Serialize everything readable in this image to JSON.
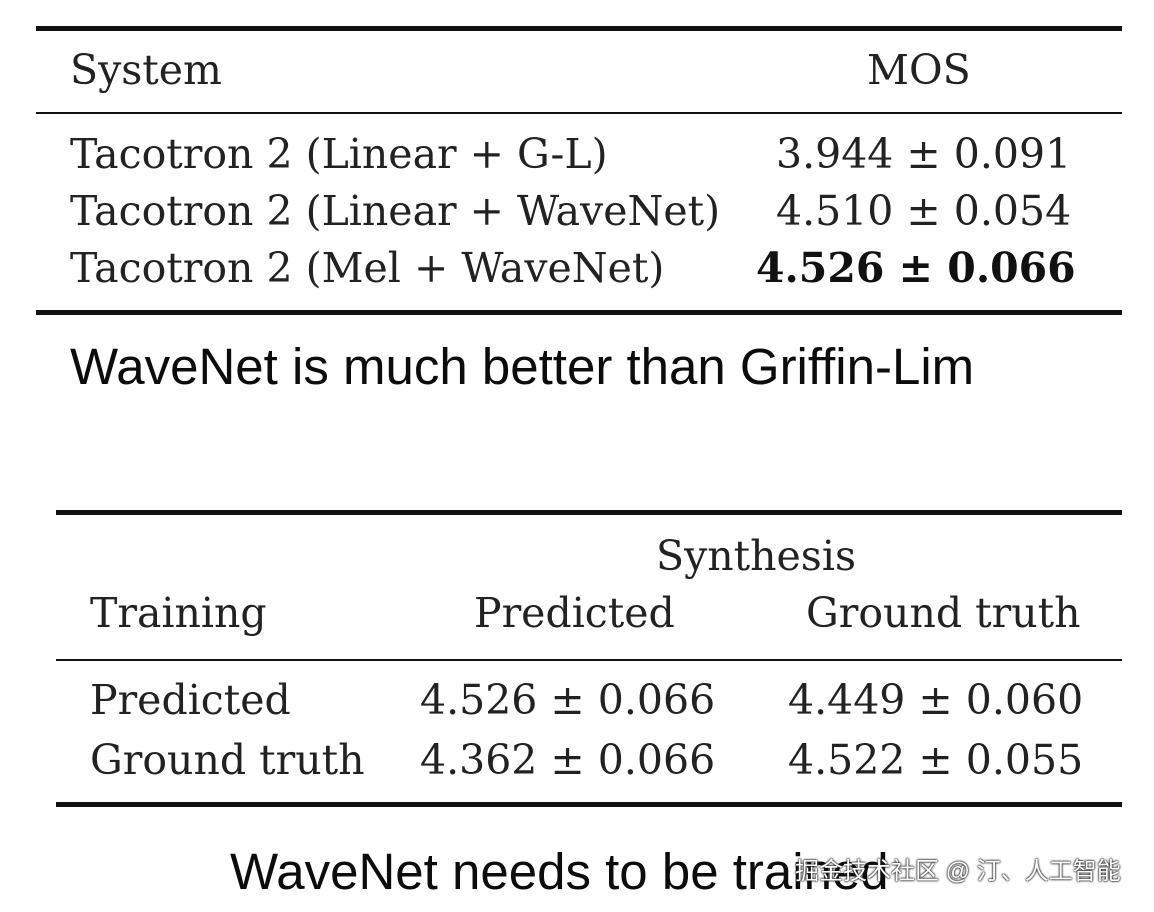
{
  "table1": {
    "headers": {
      "system": "System",
      "mos": "MOS"
    },
    "rows": [
      {
        "system": "Tacotron 2 (Linear + G-L)",
        "mos": "3.944 ± 0.091"
      },
      {
        "system": "Tacotron 2 (Linear + WaveNet)",
        "mos": "4.510 ± 0.054"
      },
      {
        "system": "Tacotron 2 (Mel + WaveNet)",
        "mos": "4.526 ± 0.066"
      }
    ],
    "caption": "WaveNet is much better than Griffin-Lim"
  },
  "table2": {
    "group_header": "Synthesis",
    "headers": {
      "training": "Training",
      "predicted": "Predicted",
      "ground_truth": "Ground truth"
    },
    "rows": [
      {
        "training": "Predicted",
        "predicted": "4.526 ± 0.066",
        "ground_truth": "4.449 ± 0.060"
      },
      {
        "training": "Ground truth",
        "predicted": "4.362 ± 0.066",
        "ground_truth": "4.522 ± 0.055"
      }
    ],
    "caption": "WaveNet needs to be trained"
  },
  "watermark": "掘金技术社区 @ 汀、人工智能"
}
